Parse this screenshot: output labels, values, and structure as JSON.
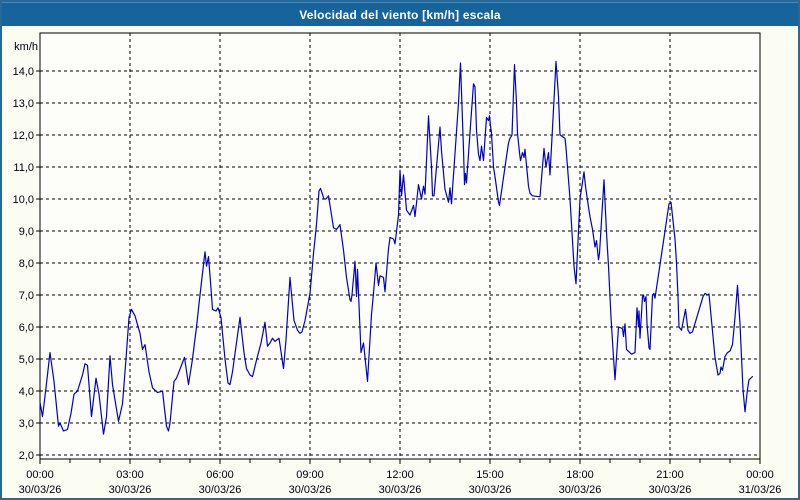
{
  "title": "Velocidad del viento [km/h] escala",
  "colors": {
    "header_bg": "#17639b",
    "header_highlight": "#4a8ab5",
    "page_bg": "#fbfcf2",
    "plot_bg": "#fdfefa",
    "frame_border": "#26699b",
    "grid": "#000000",
    "axis": "#000000",
    "label": "#000010",
    "line": "#0000c8"
  },
  "chart_data": {
    "type": "line",
    "title": "Velocidad del viento [km/h] escala",
    "ylabel": "km/h",
    "unit_label": "km/h",
    "ylim": [
      2,
      14
    ],
    "xlim_hours": [
      0,
      24
    ],
    "grid": "dashed",
    "legend": "none",
    "y_ticks": [
      {
        "v": 2,
        "label": "2,0"
      },
      {
        "v": 3,
        "label": "3,0"
      },
      {
        "v": 4,
        "label": "4,0"
      },
      {
        "v": 5,
        "label": "5,0"
      },
      {
        "v": 6,
        "label": "6,0"
      },
      {
        "v": 7,
        "label": "7,0"
      },
      {
        "v": 8,
        "label": "8,0"
      },
      {
        "v": 9,
        "label": "9,0"
      },
      {
        "v": 10,
        "label": "10,0"
      },
      {
        "v": 11,
        "label": "11,0"
      },
      {
        "v": 12,
        "label": "12,0"
      },
      {
        "v": 13,
        "label": "13,0"
      },
      {
        "v": 14,
        "label": "14,0"
      }
    ],
    "x_ticks": [
      {
        "h": 0,
        "time": "00:00",
        "date": "30/03/26"
      },
      {
        "h": 3,
        "time": "03:00",
        "date": "30/03/26"
      },
      {
        "h": 6,
        "time": "06:00",
        "date": "30/03/26"
      },
      {
        "h": 9,
        "time": "09:00",
        "date": "30/03/26"
      },
      {
        "h": 12,
        "time": "12:00",
        "date": "30/03/26"
      },
      {
        "h": 15,
        "time": "15:00",
        "date": "30/03/26"
      },
      {
        "h": 18,
        "time": "18:00",
        "date": "30/03/26"
      },
      {
        "h": 21,
        "time": "21:00",
        "date": "30/03/26"
      },
      {
        "h": 24,
        "time": "00:00",
        "date": "31/03/26"
      }
    ],
    "minor_tick_every_hours": 1,
    "series_name": "Velocidad del viento",
    "points_format": "[minutes_since_00:00, km/h]",
    "points": [
      [
        0,
        3.65
      ],
      [
        5,
        3.2
      ],
      [
        12,
        4.1
      ],
      [
        20,
        5.2
      ],
      [
        28,
        4.3
      ],
      [
        37,
        2.9
      ],
      [
        40,
        3.0
      ],
      [
        47,
        2.75
      ],
      [
        55,
        2.8
      ],
      [
        62,
        3.3
      ],
      [
        68,
        3.9
      ],
      [
        75,
        4.0
      ],
      [
        85,
        4.5
      ],
      [
        90,
        4.85
      ],
      [
        95,
        4.8
      ],
      [
        103,
        3.2
      ],
      [
        112,
        4.4
      ],
      [
        118,
        3.9
      ],
      [
        127,
        2.65
      ],
      [
        133,
        3.2
      ],
      [
        140,
        5.1
      ],
      [
        145,
        4.2
      ],
      [
        157,
        3.05
      ],
      [
        165,
        3.6
      ],
      [
        172,
        5.0
      ],
      [
        178,
        6.3
      ],
      [
        183,
        6.55
      ],
      [
        190,
        6.35
      ],
      [
        200,
        5.8
      ],
      [
        205,
        5.3
      ],
      [
        210,
        5.45
      ],
      [
        218,
        4.6
      ],
      [
        225,
        4.1
      ],
      [
        235,
        3.95
      ],
      [
        245,
        4.0
      ],
      [
        253,
        2.9
      ],
      [
        257,
        2.75
      ],
      [
        260,
        3.0
      ],
      [
        268,
        4.3
      ],
      [
        273,
        4.4
      ],
      [
        289,
        5.05
      ],
      [
        297,
        4.2
      ],
      [
        305,
        5.0
      ],
      [
        313,
        6.0
      ],
      [
        320,
        7.0
      ],
      [
        330,
        8.35
      ],
      [
        333,
        7.9
      ],
      [
        337,
        8.2
      ],
      [
        342,
        7.2
      ],
      [
        345,
        6.55
      ],
      [
        352,
        6.5
      ],
      [
        356,
        6.6
      ],
      [
        362,
        6.3
      ],
      [
        370,
        5.0
      ],
      [
        376,
        4.25
      ],
      [
        380,
        4.2
      ],
      [
        385,
        4.6
      ],
      [
        392,
        5.4
      ],
      [
        400,
        6.3
      ],
      [
        408,
        5.2
      ],
      [
        413,
        4.7
      ],
      [
        420,
        4.5
      ],
      [
        425,
        4.45
      ],
      [
        432,
        4.9
      ],
      [
        442,
        5.5
      ],
      [
        450,
        6.15
      ],
      [
        455,
        5.4
      ],
      [
        460,
        5.5
      ],
      [
        465,
        5.65
      ],
      [
        470,
        5.55
      ],
      [
        478,
        5.65
      ],
      [
        487,
        4.7
      ],
      [
        492,
        5.6
      ],
      [
        500,
        7.55
      ],
      [
        505,
        6.7
      ],
      [
        508,
        6.2
      ],
      [
        515,
        5.9
      ],
      [
        520,
        5.8
      ],
      [
        524,
        5.85
      ],
      [
        530,
        6.2
      ],
      [
        540,
        7.05
      ],
      [
        547,
        8.3
      ],
      [
        553,
        9.2
      ],
      [
        558,
        10.25
      ],
      [
        561,
        10.33
      ],
      [
        568,
        10.0
      ],
      [
        572,
        10.0
      ],
      [
        577,
        10.1
      ],
      [
        587,
        9.1
      ],
      [
        593,
        9.05
      ],
      [
        600,
        9.2
      ],
      [
        607,
        8.4
      ],
      [
        613,
        7.55
      ],
      [
        620,
        6.85
      ],
      [
        622,
        6.8
      ],
      [
        624,
        7.0
      ],
      [
        630,
        8.05
      ],
      [
        633,
        6.95
      ],
      [
        635,
        7.8
      ],
      [
        642,
        5.2
      ],
      [
        647,
        5.5
      ],
      [
        655,
        4.3
      ],
      [
        663,
        6.4
      ],
      [
        667,
        7.05
      ],
      [
        672,
        8.0
      ],
      [
        677,
        7.3
      ],
      [
        680,
        7.6
      ],
      [
        687,
        7.55
      ],
      [
        690,
        7.1
      ],
      [
        697,
        8.45
      ],
      [
        700,
        8.8
      ],
      [
        707,
        8.75
      ],
      [
        710,
        8.6
      ],
      [
        717,
        9.5
      ],
      [
        720,
        10.9
      ],
      [
        723,
        10.1
      ],
      [
        727,
        10.75
      ],
      [
        733,
        9.65
      ],
      [
        740,
        9.5
      ],
      [
        747,
        9.8
      ],
      [
        750,
        9.45
      ],
      [
        757,
        10.45
      ],
      [
        763,
        10.0
      ],
      [
        767,
        10.4
      ],
      [
        770,
        10.15
      ],
      [
        777,
        12.6
      ],
      [
        780,
        11.8
      ],
      [
        783,
        11.0
      ],
      [
        785,
        10.1
      ],
      [
        788,
        10.1
      ],
      [
        800,
        12.25
      ],
      [
        803,
        11.5
      ],
      [
        810,
        10.3
      ],
      [
        817,
        9.9
      ],
      [
        820,
        10.35
      ],
      [
        823,
        9.85
      ],
      [
        837,
        13.0
      ],
      [
        841,
        14.25
      ],
      [
        847,
        11.55
      ],
      [
        849,
        10.45
      ],
      [
        851,
        10.8
      ],
      [
        853,
        10.5
      ],
      [
        861,
        12.3
      ],
      [
        867,
        13.6
      ],
      [
        870,
        13.5
      ],
      [
        873,
        12.15
      ],
      [
        877,
        11.4
      ],
      [
        880,
        11.2
      ],
      [
        883,
        11.65
      ],
      [
        887,
        11.2
      ],
      [
        893,
        12.55
      ],
      [
        897,
        12.45
      ],
      [
        899,
        12.6
      ],
      [
        901,
        12.3
      ],
      [
        903,
        12.05
      ],
      [
        907,
        11.0
      ],
      [
        910,
        10.7
      ],
      [
        917,
        9.9
      ],
      [
        919,
        9.8
      ],
      [
        930,
        11.0
      ],
      [
        937,
        11.75
      ],
      [
        940,
        11.9
      ],
      [
        944,
        12.0
      ],
      [
        949,
        14.2
      ],
      [
        953,
        13.0
      ],
      [
        955,
        12.05
      ],
      [
        959,
        11.45
      ],
      [
        961,
        11.2
      ],
      [
        965,
        11.45
      ],
      [
        968,
        11.3
      ],
      [
        970,
        11.55
      ],
      [
        977,
        10.4
      ],
      [
        980,
        10.18
      ],
      [
        985,
        10.1
      ],
      [
        1000,
        10.07
      ],
      [
        1008,
        11.58
      ],
      [
        1012,
        11.0
      ],
      [
        1017,
        11.45
      ],
      [
        1020,
        10.75
      ],
      [
        1028,
        13.1
      ],
      [
        1032,
        14.3
      ],
      [
        1037,
        13.2
      ],
      [
        1040,
        12.0
      ],
      [
        1050,
        11.9
      ],
      [
        1052,
        11.6
      ],
      [
        1057,
        10.6
      ],
      [
        1060,
        10.0
      ],
      [
        1065,
        8.7
      ],
      [
        1068,
        7.9
      ],
      [
        1072,
        7.35
      ],
      [
        1077,
        9.0
      ],
      [
        1080,
        10.0
      ],
      [
        1088,
        10.85
      ],
      [
        1091,
        10.4
      ],
      [
        1097,
        9.75
      ],
      [
        1100,
        9.45
      ],
      [
        1105,
        9.05
      ],
      [
        1110,
        8.5
      ],
      [
        1113,
        8.7
      ],
      [
        1117,
        8.1
      ],
      [
        1119,
        8.3
      ],
      [
        1128,
        10.6
      ],
      [
        1133,
        8.95
      ],
      [
        1137,
        7.9
      ],
      [
        1142,
        6.3
      ],
      [
        1147,
        5.05
      ],
      [
        1150,
        4.35
      ],
      [
        1157,
        6.0
      ],
      [
        1165,
        5.95
      ],
      [
        1167,
        5.7
      ],
      [
        1170,
        6.1
      ],
      [
        1173,
        5.3
      ],
      [
        1183,
        5.15
      ],
      [
        1190,
        5.2
      ],
      [
        1194,
        6.6
      ],
      [
        1197,
        6.0
      ],
      [
        1198,
        6.5
      ],
      [
        1200,
        5.65
      ],
      [
        1205,
        6.95
      ],
      [
        1207,
        7.0
      ],
      [
        1209,
        6.8
      ],
      [
        1212,
        6.95
      ],
      [
        1214,
        6.1
      ],
      [
        1218,
        5.35
      ],
      [
        1220,
        5.3
      ],
      [
        1225,
        7.0
      ],
      [
        1228,
        7.05
      ],
      [
        1230,
        6.9
      ],
      [
        1250,
        9.0
      ],
      [
        1258,
        9.85
      ],
      [
        1262,
        9.9
      ],
      [
        1270,
        8.75
      ],
      [
        1273,
        8.0
      ],
      [
        1276,
        6.95
      ],
      [
        1278,
        6.0
      ],
      [
        1283,
        5.9
      ],
      [
        1291,
        6.55
      ],
      [
        1296,
        5.9
      ],
      [
        1300,
        5.8
      ],
      [
        1305,
        5.85
      ],
      [
        1326,
        6.95
      ],
      [
        1330,
        7.05
      ],
      [
        1335,
        7.0
      ],
      [
        1338,
        7.03
      ],
      [
        1343,
        6.2
      ],
      [
        1350,
        5.05
      ],
      [
        1356,
        4.5
      ],
      [
        1360,
        4.55
      ],
      [
        1362,
        4.75
      ],
      [
        1365,
        4.65
      ],
      [
        1370,
        5.08
      ],
      [
        1375,
        5.2
      ],
      [
        1380,
        5.25
      ],
      [
        1385,
        5.45
      ],
      [
        1390,
        6.3
      ],
      [
        1395,
        7.3
      ],
      [
        1400,
        6.1
      ],
      [
        1403,
        5.05
      ],
      [
        1406,
        4.05
      ],
      [
        1410,
        3.35
      ],
      [
        1415,
        4.05
      ],
      [
        1418,
        4.35
      ],
      [
        1425,
        4.45
      ]
    ]
  }
}
